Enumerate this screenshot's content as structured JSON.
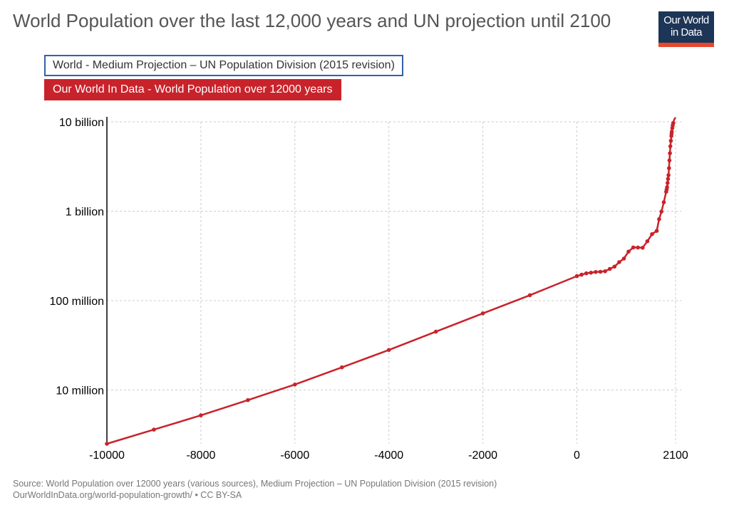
{
  "header": {
    "title": "World Population over the last 12,000 years and UN projection until 2100"
  },
  "logo": {
    "line1": "Our World",
    "line2": "in Data",
    "bg_color": "#1d3557",
    "accent_color": "#e8472c"
  },
  "legend": {
    "items": [
      {
        "label": "World - Medium Projection – UN Population Division (2015 revision)",
        "style": "outline",
        "color": "#3360a9"
      },
      {
        "label": "Our World In Data - World Population over 12000 years",
        "style": "filled",
        "color": "#c8232b"
      }
    ]
  },
  "footer": {
    "source": "Source: World Population over 12000 years (various sources), Medium Projection – UN Population Division (2015 revision)",
    "link": "OurWorldInData.org/world-population-growth/ • CC BY-SA"
  },
  "chart_data": {
    "type": "line",
    "title": "World Population over the last 12,000 years and UN projection until 2100",
    "xlabel": "",
    "ylabel": "",
    "y_scale": "log",
    "xlim": [
      -10000,
      2100
    ],
    "ylim": [
      2500000,
      10000000000
    ],
    "grid": true,
    "legend_position": "top-left",
    "x_ticks": [
      {
        "value": -10000,
        "label": "-10000"
      },
      {
        "value": -8000,
        "label": "-8000"
      },
      {
        "value": -6000,
        "label": "-6000"
      },
      {
        "value": -4000,
        "label": "-4000"
      },
      {
        "value": -2000,
        "label": "-2000"
      },
      {
        "value": 0,
        "label": "0"
      },
      {
        "value": 2100,
        "label": "2100"
      }
    ],
    "y_ticks": [
      {
        "value": 10000000,
        "label": "10 million"
      },
      {
        "value": 100000000,
        "label": "100 million"
      },
      {
        "value": 1000000000,
        "label": "1 billion"
      },
      {
        "value": 10000000000,
        "label": "10 billion"
      }
    ],
    "series": [
      {
        "name": "Our World In Data - World Population over 12000 years",
        "color": "#c8232b",
        "points": [
          [
            -10000,
            2400000
          ],
          [
            -9000,
            3600000
          ],
          [
            -8000,
            5200000
          ],
          [
            -7000,
            7700000
          ],
          [
            -6000,
            11500000
          ],
          [
            -5000,
            17900000
          ],
          [
            -4000,
            28000000
          ],
          [
            -3000,
            44900000
          ],
          [
            -2000,
            72000000
          ],
          [
            -1000,
            115000000
          ],
          [
            0,
            188000000
          ],
          [
            100,
            195000000
          ],
          [
            200,
            202000000
          ],
          [
            300,
            205000000
          ],
          [
            400,
            209000000
          ],
          [
            500,
            210000000
          ],
          [
            600,
            213000000
          ],
          [
            700,
            226000000
          ],
          [
            800,
            240000000
          ],
          [
            900,
            269000000
          ],
          [
            1000,
            295000000
          ],
          [
            1100,
            353000000
          ],
          [
            1200,
            393000000
          ],
          [
            1300,
            392000000
          ],
          [
            1400,
            390000000
          ],
          [
            1500,
            461000000
          ],
          [
            1600,
            554000000
          ],
          [
            1700,
            603000000
          ],
          [
            1750,
            814000000
          ],
          [
            1800,
            990000000
          ],
          [
            1850,
            1260000000
          ],
          [
            1900,
            1650000000
          ],
          [
            1910,
            1750000000
          ],
          [
            1920,
            1860000000
          ],
          [
            1930,
            2070000000
          ],
          [
            1940,
            2300000000
          ],
          [
            1950,
            2530000000
          ],
          [
            1960,
            3030000000
          ],
          [
            1970,
            3700000000
          ],
          [
            1980,
            4450000000
          ],
          [
            1990,
            5330000000
          ],
          [
            2000,
            6140000000
          ],
          [
            2010,
            6930000000
          ],
          [
            2015,
            7350000000
          ],
          [
            2020,
            7760000000
          ],
          [
            2030,
            8500000000
          ],
          [
            2040,
            9100000000
          ],
          [
            2050,
            9700000000
          ],
          [
            2060,
            10200000000
          ],
          [
            2070,
            10500000000
          ],
          [
            2080,
            10800000000
          ],
          [
            2090,
            11000000000
          ],
          [
            2100,
            11200000000
          ]
        ]
      }
    ]
  }
}
